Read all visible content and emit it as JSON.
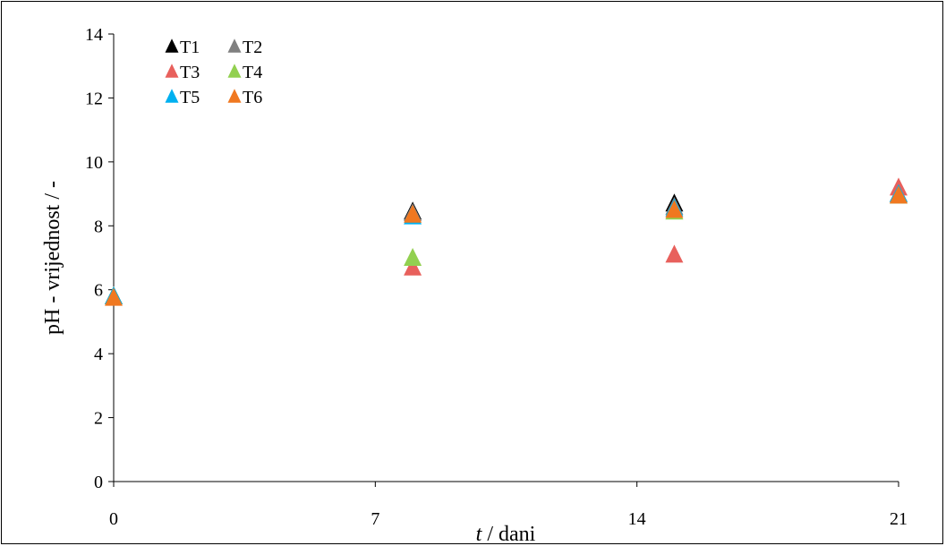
{
  "chart_data": {
    "type": "scatter",
    "title": "",
    "xlabel_italic": "t",
    "xlabel_rest": " / dani",
    "ylabel": "pH - vrijednost / -",
    "xlim": [
      0,
      21
    ],
    "ylim": [
      0,
      14
    ],
    "x_ticks": [
      0,
      7,
      14,
      21
    ],
    "y_ticks": [
      0,
      2,
      4,
      6,
      8,
      10,
      12,
      14
    ],
    "grid": false,
    "legend_position": "top-left",
    "marker": "triangle",
    "series": [
      {
        "name": "T1",
        "color": "#000000",
        "x": [
          0,
          8,
          15,
          21
        ],
        "y": [
          5.8,
          8.45,
          8.7,
          9.0
        ]
      },
      {
        "name": "T2",
        "color": "#808080",
        "x": [
          0,
          8,
          15,
          21
        ],
        "y": [
          5.8,
          8.4,
          8.6,
          8.95
        ]
      },
      {
        "name": "T3",
        "color": "#e8605c",
        "x": [
          0,
          8,
          15,
          21
        ],
        "y": [
          5.8,
          6.7,
          7.1,
          9.2
        ]
      },
      {
        "name": "T4",
        "color": "#92d050",
        "x": [
          0,
          8,
          15,
          21
        ],
        "y": [
          5.8,
          7.0,
          8.45,
          8.95
        ]
      },
      {
        "name": "T5",
        "color": "#00b0f0",
        "x": [
          0,
          8,
          15,
          21
        ],
        "y": [
          5.8,
          8.3,
          8.55,
          9.0
        ]
      },
      {
        "name": "T6",
        "color": "#f07820",
        "x": [
          0,
          8,
          15,
          21
        ],
        "y": [
          5.75,
          8.35,
          8.5,
          8.95
        ]
      }
    ]
  }
}
